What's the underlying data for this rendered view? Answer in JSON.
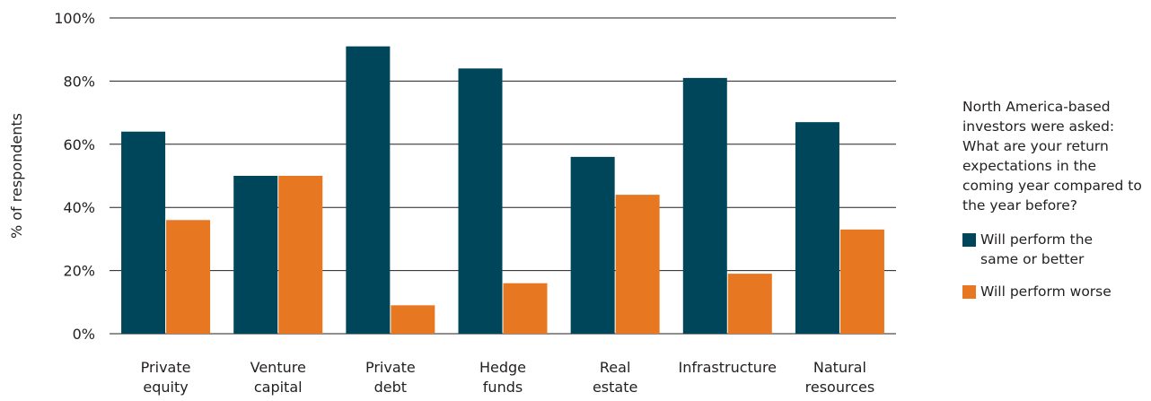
{
  "chart_data": {
    "type": "bar",
    "categories": [
      [
        "Private",
        "equity"
      ],
      [
        "Venture",
        "capital"
      ],
      [
        "Private",
        "debt"
      ],
      [
        "Hedge",
        "funds"
      ],
      [
        "Real",
        "estate"
      ],
      [
        "Infrastructure"
      ],
      [
        "Natural",
        "resources"
      ]
    ],
    "series": [
      {
        "name": "Will perform the same or better",
        "color": "#00465b",
        "values": [
          64,
          50,
          91,
          84,
          56,
          81,
          67
        ]
      },
      {
        "name": "Will perform worse",
        "color": "#e87722",
        "values": [
          36,
          50,
          9,
          16,
          44,
          19,
          33
        ]
      }
    ],
    "ylabel": "% of respondents",
    "ylim": [
      0,
      100
    ],
    "yticks": [
      "0%",
      "20%",
      "40%",
      "60%",
      "80%",
      "100%"
    ],
    "grid": true,
    "legend_position": "right"
  },
  "note": "North America-based investors were asked: What are your return expectations in the coming year compared to the year before?",
  "legend": {
    "items": [
      {
        "label_lines": [
          "Will perform the",
          "same or better"
        ],
        "color": "#00465b"
      },
      {
        "label_lines": [
          "Will perform worse"
        ],
        "color": "#e87722"
      }
    ]
  }
}
